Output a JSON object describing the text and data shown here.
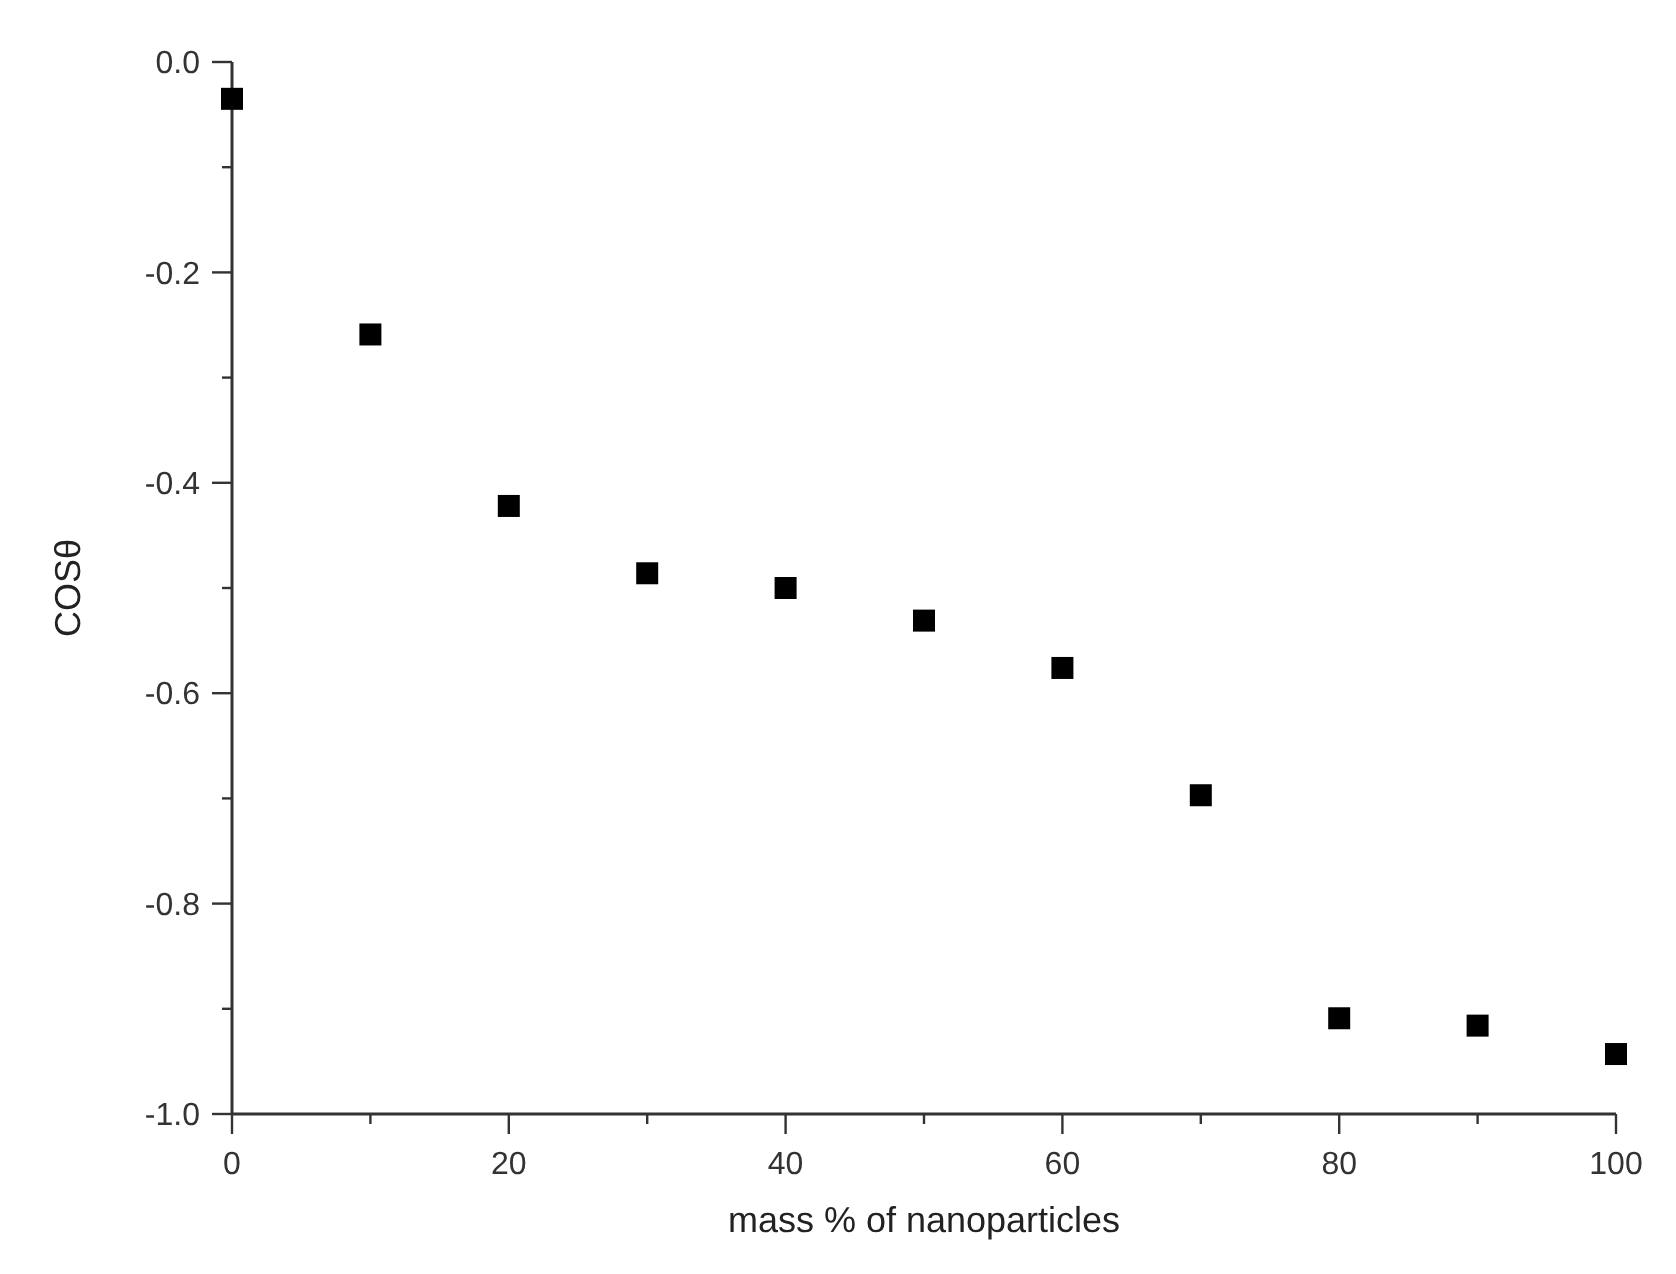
{
  "chart_data": {
    "type": "scatter",
    "xlabel": "mass % of nanoparticles",
    "ylabel": "COSθ",
    "x": [
      0,
      10,
      20,
      30,
      40,
      50,
      60,
      70,
      80,
      90,
      100
    ],
    "series": [
      {
        "color": "#000000",
        "values": [
          -0.035,
          -0.259,
          -0.422,
          -0.486,
          -0.5,
          -0.531,
          -0.576,
          -0.697,
          -0.909,
          -0.916,
          -0.943
        ]
      }
    ],
    "marker": "square",
    "xlim": [
      0,
      100
    ],
    "xticks": [
      0,
      {
        "value": 10,
        "label": null
      },
      20,
      {
        "value": 30,
        "label": null
      },
      40,
      {
        "value": 50,
        "label": null
      },
      60,
      {
        "value": 70,
        "label": null
      },
      80,
      {
        "value": 90,
        "label": null
      },
      100
    ],
    "ylim": [
      -1,
      0
    ],
    "yticks": [
      {
        "value": -1,
        "label": "-1.0"
      },
      {
        "value": -0.9,
        "label": null
      },
      -0.8,
      {
        "value": -0.7,
        "label": null
      },
      -0.6,
      {
        "value": -0.5,
        "label": null
      },
      -0.4,
      {
        "value": -0.3,
        "label": null
      },
      -0.2,
      {
        "value": -0.1,
        "label": null
      },
      {
        "value": 0,
        "label": "0.0"
      }
    ]
  }
}
